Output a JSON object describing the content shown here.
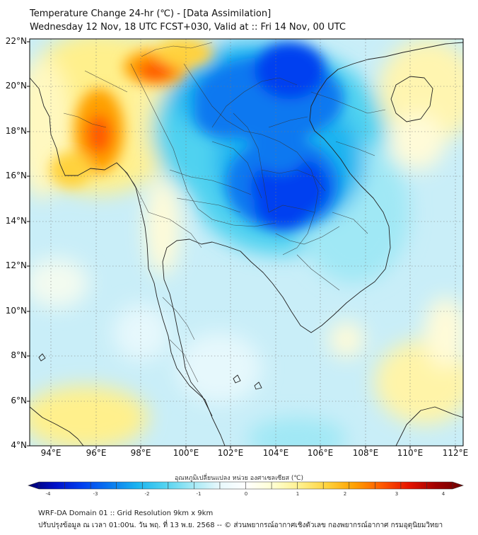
{
  "header": {
    "title_line1": "Temperature Change 24-hr (℃) - [Data Assimilation]",
    "title_line2": "Wednesday 12 Nov, 18 UTC FCST+030, Valid at :: Fri 14 Nov, 00 UTC"
  },
  "map": {
    "lat_labels": [
      "22°N",
      "20°N",
      "18°N",
      "16°N",
      "14°N",
      "12°N",
      "10°N",
      "8°N",
      "6°N",
      "4°N"
    ],
    "lon_labels": [
      "94°E",
      "96°E",
      "98°E",
      "100°E",
      "102°E",
      "104°E",
      "106°E",
      "108°E",
      "110°E",
      "112°E"
    ],
    "background_color": "#c9eef8"
  },
  "colorbar": {
    "title": "อุณหภูมิเปลี่ยนแปลง หน่วย องศาเซลเซียส (℃)",
    "ticks": [
      "-4",
      "-3",
      "-2",
      "-1",
      "0",
      "1",
      "2",
      "3",
      "4"
    ],
    "min": -4,
    "max": 4,
    "colors": [
      "#00006e",
      "#0010c8",
      "#0040f0",
      "#0a78f0",
      "#1ab4f0",
      "#50d2f0",
      "#a0e8f5",
      "#e6f8fc",
      "#ffffff",
      "#ffffd2",
      "#fff08c",
      "#ffd23c",
      "#ffa000",
      "#ff5a00",
      "#e61400",
      "#a00000",
      "#6e0000"
    ]
  },
  "footer": {
    "line1": "WRF-DA Domain 01 :: Grid Resolution 9km x 9km",
    "line2": "ปรับปรุงข้อมูล ณ เวลา 01:00น. วัน พฤ. ที่ 13 พ.ย. 2568 -- © ส่วนพยากรณ์อากาศเชิงตัวเลข กองพยากรณ์อากาศ กรมอุตุนิยมวิทยา"
  }
}
